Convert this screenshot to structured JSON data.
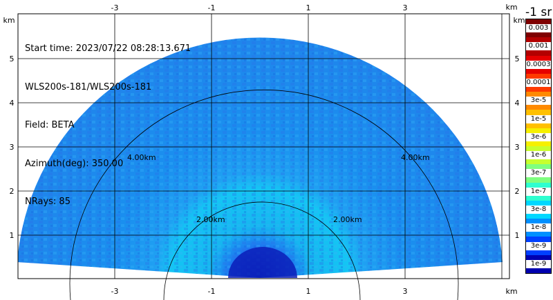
{
  "info": {
    "start_time": "Start time: 2023/07/22 08:28:13.671",
    "instrument": "WLS200s-181/WLS200s-181",
    "field": "Field: BETA",
    "azimuth": "Azimuth(deg): 350.00",
    "nrays": "NRays: 85"
  },
  "axes": {
    "x_unit": "km",
    "y_unit": "km",
    "x_ticks": [
      "-3",
      "-1",
      "1",
      "3"
    ],
    "y_ticks": [
      "1",
      "2",
      "3",
      "4",
      "5"
    ],
    "range_rings": [
      "2.00km",
      "4.00km"
    ]
  },
  "colorbar": {
    "title": "-1 sr",
    "labels": [
      "0.003",
      "0.001",
      "0.0003",
      "0.0001",
      "3e-5",
      "1e-5",
      "3e-6",
      "1e-6",
      "3e-7",
      "1e-7",
      "3e-8",
      "1e-8",
      "3e-9",
      "1e-9"
    ],
    "colors": [
      "#7f0000",
      "#b40000",
      "#e60000",
      "#ff3a00",
      "#ff8a00",
      "#ffc000",
      "#f6f000",
      "#c8ff2e",
      "#7fff7f",
      "#2effd0",
      "#00d8ff",
      "#0090ff",
      "#0040ff",
      "#0000b0"
    ]
  }
}
